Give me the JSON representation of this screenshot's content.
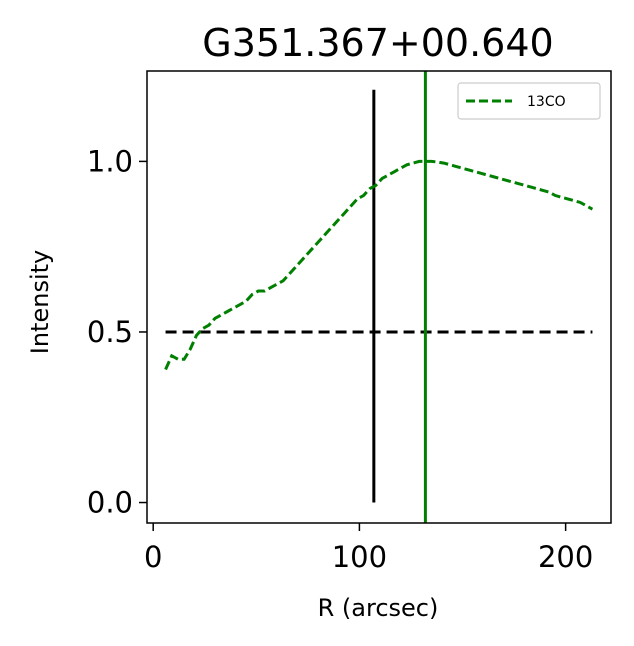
{
  "chart_data": {
    "type": "line",
    "title": "G351.367+00.640",
    "xlabel": "R (arcsec)",
    "ylabel": "Intensity",
    "xlim": [
      -3,
      222
    ],
    "ylim": [
      -0.06,
      1.265
    ],
    "xticks": [
      {
        "value": 0,
        "label": "0"
      },
      {
        "value": 100,
        "label": "100"
      },
      {
        "value": 200,
        "label": "200"
      }
    ],
    "yticks": [
      {
        "value": 0.0,
        "label": "0.0"
      },
      {
        "value": 0.5,
        "label": "0.5"
      },
      {
        "value": 1.0,
        "label": "1.0"
      }
    ],
    "grid": false,
    "legend": {
      "position": "top-right",
      "entries": [
        "13CO"
      ]
    },
    "series": [
      {
        "name": "13CO",
        "style": "dashed",
        "color": "#008000",
        "x": [
          6,
          9,
          12,
          15,
          18,
          21,
          24,
          27,
          30,
          33,
          36,
          39,
          42,
          45,
          48,
          51,
          54,
          57,
          60,
          63,
          66,
          69,
          72,
          75,
          78,
          81,
          84,
          87,
          90,
          93,
          96,
          99,
          102,
          105,
          108,
          111,
          114,
          117,
          120,
          123,
          126,
          129,
          132,
          135,
          138,
          141,
          144,
          147,
          150,
          153,
          156,
          159,
          162,
          165,
          168,
          171,
          174,
          177,
          180,
          183,
          186,
          189,
          192,
          195,
          198,
          201,
          204,
          207,
          210,
          213
        ],
        "y": [
          0.39,
          0.43,
          0.42,
          0.42,
          0.45,
          0.49,
          0.51,
          0.52,
          0.54,
          0.55,
          0.56,
          0.57,
          0.58,
          0.59,
          0.61,
          0.62,
          0.62,
          0.63,
          0.64,
          0.65,
          0.67,
          0.69,
          0.71,
          0.73,
          0.75,
          0.77,
          0.79,
          0.81,
          0.83,
          0.85,
          0.87,
          0.89,
          0.9,
          0.92,
          0.93,
          0.95,
          0.96,
          0.97,
          0.98,
          0.99,
          0.995,
          1.0,
          1.0,
          1.0,
          0.998,
          0.995,
          0.99,
          0.985,
          0.98,
          0.975,
          0.97,
          0.965,
          0.96,
          0.955,
          0.95,
          0.945,
          0.94,
          0.935,
          0.93,
          0.925,
          0.92,
          0.915,
          0.91,
          0.9,
          0.895,
          0.89,
          0.885,
          0.88,
          0.87,
          0.86
        ]
      }
    ],
    "reference_lines": [
      {
        "orientation": "horizontal",
        "value": 0.5,
        "from": 6,
        "to": 213,
        "style": "dashed",
        "color": "#000000"
      },
      {
        "orientation": "vertical",
        "value": 107,
        "from": 0.0,
        "to": 1.21,
        "style": "solid",
        "color": "#000000"
      },
      {
        "orientation": "vertical",
        "value": 132,
        "style": "solid",
        "color": "#008000"
      }
    ]
  }
}
